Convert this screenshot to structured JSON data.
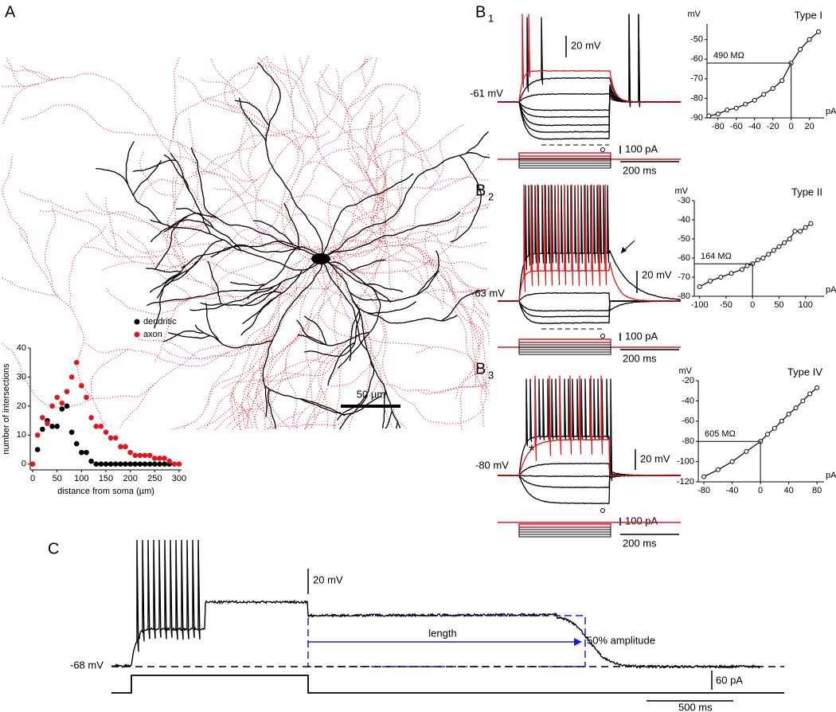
{
  "panel_a": "A",
  "panel_b1": {
    "letter": "B",
    "index": "1"
  },
  "panel_b2": {
    "letter": "B",
    "index": "2"
  },
  "panel_b3": {
    "letter": "B",
    "index": "3"
  },
  "panel_c": "C",
  "morphology": {
    "scale_bar": "50 µm"
  },
  "traces": {
    "b1": {
      "rest": "-61 mV",
      "v_scale": "20 mV",
      "i_scale": "100 pA",
      "t_scale": "200 ms"
    },
    "b2": {
      "rest": "-63 mV",
      "v_scale": "20 mV",
      "i_scale": "100 pA",
      "t_scale": "200 ms"
    },
    "b3": {
      "rest": "-80 mV",
      "v_scale": "20 mV",
      "i_scale": "100 pA",
      "t_scale": "200 ms",
      "marker": "*"
    },
    "c": {
      "rest": "-68 mV",
      "v_scale": "20 mV",
      "i_scale": "60 pA",
      "t_scale": "500 ms",
      "length": "length",
      "amplitude": "50% amplitude"
    }
  },
  "chart_data": [
    {
      "type": "scatter",
      "xlabel": "distance from soma (µm)",
      "ylabel": "number of intersections",
      "x": [
        0,
        10,
        20,
        30,
        40,
        50,
        60,
        70,
        80,
        90,
        100,
        110,
        120,
        130,
        140,
        150,
        160,
        170,
        180,
        190,
        200,
        210,
        220,
        230,
        240,
        250,
        260,
        270,
        280,
        290,
        300
      ],
      "series": [
        {
          "name": "dendritic",
          "color": "#000000",
          "values": [
            null,
            5,
            12,
            15,
            13,
            13,
            19,
            20,
            11,
            7,
            4,
            4,
            1,
            0,
            0,
            0,
            0,
            0,
            0,
            0,
            0,
            0,
            0,
            0,
            0,
            0,
            0,
            0,
            0,
            null,
            null
          ]
        },
        {
          "name": "axon",
          "color": "#e8141b",
          "values": [
            0,
            10,
            16,
            14,
            20,
            23,
            21,
            25,
            30,
            35,
            27,
            23,
            16,
            13,
            13,
            11,
            9,
            9,
            6,
            6,
            4,
            3,
            3,
            3,
            3,
            2,
            2,
            2,
            1,
            0,
            0
          ]
        }
      ],
      "xlim": [
        -5,
        305
      ],
      "ylim": [
        -2,
        40
      ],
      "xticks": [
        0,
        50,
        100,
        150,
        200,
        250,
        300
      ],
      "yticks": [
        0,
        10,
        20,
        30,
        40
      ],
      "legend": "upper-right"
    },
    {
      "type": "iv",
      "title": "Type I",
      "xlabel": "pA",
      "ylabel": "mV",
      "annotation": "490 MΩ",
      "x": [
        -90,
        -80,
        -70,
        -60,
        -50,
        -40,
        -30,
        -20,
        -10,
        0,
        10,
        20,
        30
      ],
      "values": [
        -89,
        -88,
        -86,
        -85,
        -83,
        -81,
        -78,
        -75,
        -71,
        -62,
        -55,
        -50,
        -46
      ],
      "xlim": [
        -92,
        36
      ],
      "ylim": [
        -90,
        -42
      ],
      "xticks": [
        -80,
        -60,
        -40,
        -20,
        0,
        20
      ],
      "yticks": [
        -90,
        -80,
        -70,
        -60,
        -50
      ]
    },
    {
      "type": "iv",
      "title": "Type II",
      "xlabel": "pA",
      "ylabel": "mV",
      "annotation": "164 MΩ",
      "x": [
        -100,
        -80,
        -60,
        -40,
        -20,
        -10,
        0,
        10,
        20,
        30,
        40,
        50,
        60,
        70,
        80,
        90,
        100,
        110
      ],
      "values": [
        -75,
        -72,
        -70,
        -68,
        -66,
        -64,
        -63,
        -61,
        -60,
        -58,
        -56,
        -54,
        -52,
        -50,
        -46,
        -46,
        -44,
        -42
      ],
      "xlim": [
        -110,
        135
      ],
      "ylim": [
        -80,
        -30
      ],
      "xticks": [
        -100,
        -50,
        0,
        50,
        100
      ],
      "yticks": [
        -80,
        -70,
        -60,
        -50,
        -40,
        -30
      ]
    },
    {
      "type": "iv",
      "title": "Type IV",
      "xlabel": "pA",
      "ylabel": "mV",
      "annotation": "605 MΩ",
      "x": [
        -80,
        -60,
        -40,
        -20,
        0,
        10,
        20,
        30,
        40,
        50,
        60,
        70,
        80
      ],
      "values": [
        -115,
        -108,
        -100,
        -90,
        -80,
        -73,
        -67,
        -60,
        -53,
        -47,
        -40,
        -33,
        -27
      ],
      "xlim": [
        -88,
        90
      ],
      "ylim": [
        -120,
        -20
      ],
      "xticks": [
        -80,
        -40,
        0,
        40,
        80
      ],
      "yticks": [
        -120,
        -100,
        -80,
        -60,
        -40,
        -20
      ]
    }
  ]
}
